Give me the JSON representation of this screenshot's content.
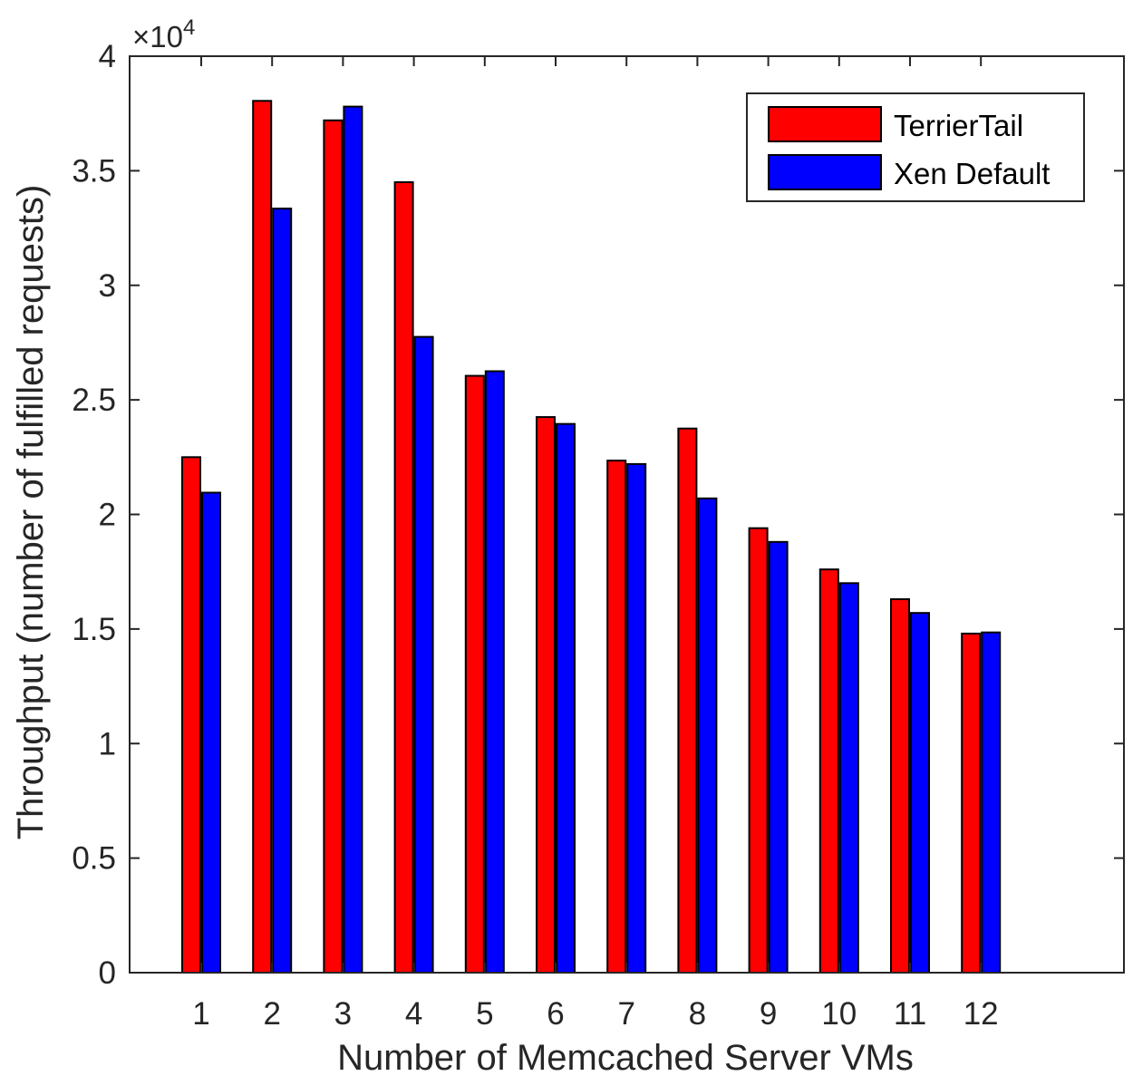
{
  "chart_data": {
    "type": "bar",
    "categories": [
      "1",
      "2",
      "3",
      "4",
      "5",
      "6",
      "7",
      "8",
      "9",
      "10",
      "11",
      "12"
    ],
    "series": [
      {
        "name": "TerrierTail",
        "color": "#ff0000",
        "values": [
          22500,
          38050,
          37200,
          34500,
          26050,
          24250,
          22350,
          23750,
          19400,
          17600,
          16300,
          14800
        ]
      },
      {
        "name": "Xen Default",
        "color": "#0000ff",
        "values": [
          20950,
          33350,
          37800,
          27750,
          26250,
          23950,
          22200,
          20700,
          18800,
          17000,
          15700,
          14850
        ]
      }
    ],
    "xlabel": "Number of Memcached Server VMs",
    "ylabel": "Throughput (number of fulfilled requests)",
    "ylim": [
      0,
      40000
    ],
    "yticks": [
      0,
      5000,
      10000,
      15000,
      20000,
      25000,
      30000,
      35000,
      40000
    ],
    "ytick_labels": [
      "0",
      "0.5",
      "1",
      "1.5",
      "2",
      "2.5",
      "3",
      "3.5",
      "4"
    ],
    "y_multiplier": {
      "base": "×10",
      "exponent": "4"
    },
    "grid": false,
    "legend_position": "top-right"
  }
}
